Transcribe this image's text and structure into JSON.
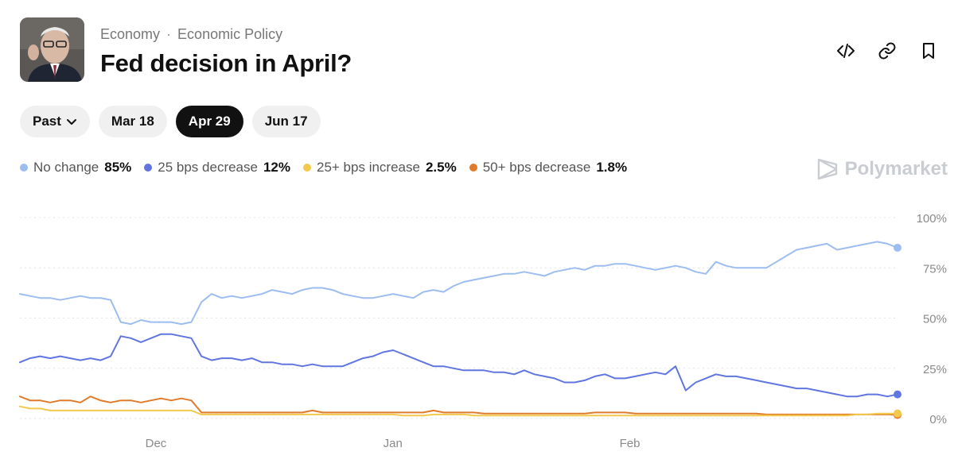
{
  "header": {
    "category": "Economy",
    "subcategory": "Economic Policy",
    "title": "Fed decision in April?"
  },
  "tabs": [
    {
      "label": "Past"
    },
    {
      "label": "Mar 18"
    },
    {
      "label": "Apr 29"
    },
    {
      "label": "Jun 17"
    }
  ],
  "legend": [
    {
      "name": "No change",
      "value": "85%",
      "color": "#9dbdf0"
    },
    {
      "name": "25 bps decrease",
      "value": "12%",
      "color": "#6175e0"
    },
    {
      "name": "25+ bps increase",
      "value": "2.5%",
      "color": "#f2c94c"
    },
    {
      "name": "50+ bps decrease",
      "value": "1.8%",
      "color": "#e07b2c"
    }
  ],
  "brand": {
    "name": "Polymarket"
  },
  "chart_data": {
    "type": "line",
    "y_ticks": [
      "100%",
      "75%",
      "50%",
      "25%",
      "0%"
    ],
    "x_ticks": [
      {
        "label": "Dec",
        "at": 0.155
      },
      {
        "label": "Jan",
        "at": 0.425
      },
      {
        "label": "Feb",
        "at": 0.695
      }
    ],
    "ylim": [
      0,
      100
    ],
    "series": [
      {
        "name": "No change",
        "color": "#9dbdf0",
        "values": [
          62,
          61,
          60,
          60,
          59,
          60,
          61,
          60,
          60,
          59,
          48,
          47,
          49,
          48,
          48,
          48,
          47,
          48,
          58,
          62,
          60,
          61,
          60,
          61,
          62,
          64,
          63,
          62,
          64,
          65,
          65,
          64,
          62,
          61,
          60,
          60,
          61,
          62,
          61,
          60,
          63,
          64,
          63,
          66,
          68,
          69,
          70,
          71,
          72,
          72,
          73,
          72,
          71,
          73,
          74,
          75,
          74,
          76,
          76,
          77,
          77,
          76,
          75,
          74,
          75,
          76,
          75,
          73,
          72,
          78,
          76,
          75,
          75,
          75,
          75,
          78,
          81,
          84,
          85,
          86,
          87,
          84,
          85,
          86,
          87,
          88,
          87,
          85
        ]
      },
      {
        "name": "25 bps decrease",
        "color": "#6175e0",
        "values": [
          28,
          30,
          31,
          30,
          31,
          30,
          29,
          30,
          29,
          31,
          41,
          40,
          38,
          40,
          42,
          42,
          41,
          40,
          31,
          29,
          30,
          30,
          29,
          30,
          28,
          28,
          27,
          27,
          26,
          27,
          26,
          26,
          26,
          28,
          30,
          31,
          33,
          34,
          32,
          30,
          28,
          26,
          26,
          25,
          24,
          24,
          24,
          23,
          23,
          22,
          24,
          22,
          21,
          20,
          18,
          18,
          19,
          21,
          22,
          20,
          20,
          21,
          22,
          23,
          22,
          26,
          14,
          18,
          20,
          22,
          21,
          21,
          20,
          19,
          18,
          17,
          16,
          15,
          15,
          14,
          13,
          12,
          11,
          11,
          12,
          12,
          11,
          12
        ]
      },
      {
        "name": "25+ bps increase",
        "color": "#f2c94c",
        "values": [
          6,
          5,
          5,
          4,
          4,
          4,
          4,
          4,
          4,
          4,
          4,
          4,
          4,
          4,
          4,
          4,
          4,
          4,
          2,
          2,
          2,
          2,
          2,
          2,
          2,
          2,
          2,
          2,
          2,
          2,
          2,
          2,
          2,
          2,
          2,
          2,
          2,
          2,
          1.5,
          1.5,
          1.5,
          2,
          2,
          2,
          2,
          1.5,
          1.5,
          1.5,
          1.5,
          1.5,
          1.5,
          1.5,
          1.5,
          1.5,
          1.5,
          1.5,
          1.5,
          1.5,
          1.5,
          1.5,
          1.5,
          1.5,
          1.5,
          1.5,
          1.5,
          1.5,
          1.5,
          1.5,
          1.5,
          1.5,
          1.5,
          1.5,
          1.5,
          1.5,
          1.5,
          1.5,
          1.5,
          1.5,
          1.5,
          1.5,
          1.5,
          1.5,
          1.5,
          2,
          2,
          2.5,
          2.5,
          2.5
        ]
      },
      {
        "name": "50+ bps decrease",
        "color": "#e07b2c",
        "values": [
          11,
          9,
          9,
          8,
          9,
          9,
          8,
          11,
          9,
          8,
          9,
          9,
          8,
          9,
          10,
          9,
          10,
          9,
          3,
          3,
          3,
          3,
          3,
          3,
          3,
          3,
          3,
          3,
          3,
          4,
          3,
          3,
          3,
          3,
          3,
          3,
          3,
          3,
          3,
          3,
          3,
          4,
          3,
          3,
          3,
          3,
          2.5,
          2.5,
          2.5,
          2.5,
          2.5,
          2.5,
          2.5,
          2.5,
          2.5,
          2.5,
          2.5,
          3,
          3,
          3,
          3,
          2.5,
          2.5,
          2.5,
          2.5,
          2.5,
          2.5,
          2.5,
          2.5,
          2.5,
          2.5,
          2.5,
          2.5,
          2.5,
          2,
          2,
          2,
          2,
          2,
          2,
          2,
          2,
          2,
          2,
          2,
          2,
          2,
          1.8
        ]
      }
    ]
  }
}
